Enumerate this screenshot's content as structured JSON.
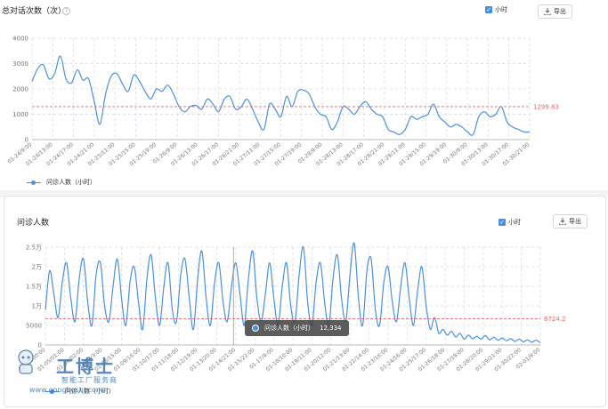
{
  "panel1": {
    "title": "总对话次数（次）",
    "help_glyph": "?",
    "checkbox_label": "小时",
    "export_label": "导出",
    "legend": "问诊人数（小时）"
  },
  "panel2": {
    "title": "问诊人数",
    "checkbox_label": "小时",
    "export_label": "导出",
    "legend": "问诊人数（小时）",
    "tooltip_label": "问诊人数（小时）",
    "tooltip_value": "12,334"
  },
  "watermark": {
    "brand": "工博士",
    "tagline": "智能工厂服务商",
    "url": "www.gongboshi.com"
  },
  "colors": {
    "line": "#4a90e2",
    "ref": "#e06666",
    "grid": "#cfd6e4",
    "axis": "#777777"
  },
  "chart_data": [
    {
      "type": "line",
      "series": [
        {
          "name": "问诊人数（小时）",
          "values": [
            2300,
            2800,
            2950,
            2400,
            2600,
            3300,
            2400,
            2250,
            2750,
            2350,
            2400,
            1500,
            600,
            1800,
            2500,
            2600,
            2200,
            1900,
            2550,
            2300,
            1900,
            1600,
            2000,
            1900,
            2150,
            1800,
            1300,
            1100,
            1300,
            1350,
            1200,
            1600,
            1400,
            1100,
            1600,
            1700,
            1200,
            1300,
            1600,
            1200,
            700,
            400,
            1400,
            1200,
            900,
            1700,
            1300,
            1900,
            1950,
            1800,
            1300,
            1000,
            900,
            400,
            700,
            1300,
            1200,
            1000,
            1300,
            1500,
            1200,
            1000,
            900,
            400,
            300,
            200,
            400,
            900,
            800,
            900,
            1000,
            1400,
            900,
            700,
            500,
            600,
            500,
            300,
            200,
            900,
            1100,
            900,
            1000,
            1300,
            700,
            500,
            400,
            300,
            300
          ]
        }
      ],
      "x_ticks": [
        "01-24/9:00",
        "01-24/13:00",
        "01-24/17:00",
        "01-24/21:00",
        "01-25/11:00",
        "01-25/15:00",
        "01-25/19:00",
        "01-26/9:00",
        "01-26/13:00",
        "01-26/17:00",
        "01-26/21:00",
        "01-27/11:00",
        "01-27/15:00",
        "01-27/19:00",
        "01-28/9:00",
        "01-28/13:00",
        "01-28/17:00",
        "01-28/21:00",
        "01-29/11:00",
        "01-29/15:00",
        "01-29/19:00",
        "01-30/9:00",
        "01-30/13:00",
        "01-30/17:00",
        "01-30/21:00"
      ],
      "y_ticks": [
        "0",
        "1000",
        "2000",
        "3000",
        "4000"
      ],
      "ylim": [
        0,
        4000
      ],
      "reference_line": {
        "value": 1299.83,
        "label": "1299.83"
      },
      "grid": true
    },
    {
      "type": "line",
      "series": [
        {
          "name": "问诊人数（小时）",
          "values": [
            9000,
            19000,
            13000,
            7000,
            16000,
            21000,
            12000,
            6000,
            17000,
            22000,
            11000,
            5000,
            18000,
            21000,
            10000,
            6000,
            15000,
            22000,
            12000,
            5000,
            16000,
            20000,
            11000,
            4000,
            17000,
            23000,
            12000,
            5000,
            15000,
            21000,
            9000,
            6000,
            18000,
            22000,
            12000,
            4000,
            17000,
            24000,
            12000,
            5000,
            16000,
            21000,
            11000,
            6000,
            15000,
            21000,
            13000,
            5000,
            17000,
            24000,
            12000,
            6000,
            13000,
            21000,
            12000,
            5000,
            15000,
            21000,
            10000,
            6000,
            18000,
            25000,
            11000,
            5000,
            16000,
            21000,
            11000,
            5000,
            17000,
            23000,
            12000,
            6000,
            18000,
            26000,
            12000,
            5000,
            19000,
            22000,
            9000,
            5000,
            16000,
            20000,
            11000,
            6000,
            15000,
            21000,
            12000,
            5000,
            14000,
            20000,
            10000,
            4000,
            7000,
            3000,
            4000,
            2500,
            3500,
            2000,
            3000,
            1500,
            2500,
            1600,
            2200,
            1500,
            2400,
            1300,
            2000,
            1200,
            1800,
            1100,
            1600,
            900,
            1500,
            800,
            1300,
            700,
            1200,
            600
          ]
        }
      ],
      "x_ticks": [
        "01-03/00:00",
        "01-05/01:00",
        "01-06/02:00",
        "01-07/3:00",
        "01-08/15:00",
        "01-09/16:00",
        "01-10/17:00",
        "01-11/18:00",
        "01-12/19:00",
        "01-13/20:00",
        "01-14/21:00",
        "01-15/22:00",
        "01-17/9:00",
        "01-18/10:00",
        "01-19/11:00",
        "01-20/12:00",
        "01-21/13:00",
        "01-22/14:00",
        "01-23/16:00",
        "01-24/16:00",
        "01-25/17:00",
        "01-26/18:00",
        "01-27/19:00",
        "01-28/20:00",
        "01-29/21:00",
        "01-30/22:00",
        "02-01/9:00"
      ],
      "y_ticks": [
        "0",
        "5000",
        "1万",
        "1.5万",
        "2万",
        "2.5万"
      ],
      "ylim": [
        0,
        25000
      ],
      "reference_line": {
        "value": 6724.2,
        "label": "6724.2"
      },
      "grid": true
    }
  ]
}
